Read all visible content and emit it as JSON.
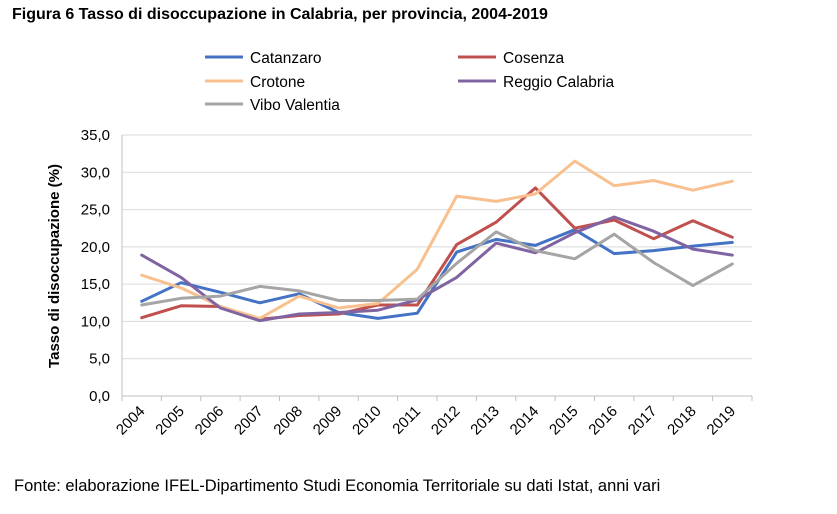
{
  "figure": {
    "title": "Figura 6 Tasso di disoccupazione in Calabria, per provincia, 2004-2019",
    "source": "Fonte: elaborazione IFEL-Dipartimento Studi Economia Territoriale su dati Istat, anni vari"
  },
  "chart_data": {
    "type": "line",
    "title": "Figura 6 Tasso di disoccupazione in Calabria, per provincia, 2004-2019",
    "xlabel": "",
    "ylabel": "Tasso di disoccupazione (%)",
    "x": [
      "2004",
      "2005",
      "2006",
      "2007",
      "2008",
      "2009",
      "2010",
      "2011",
      "2012",
      "2013",
      "2014",
      "2015",
      "2016",
      "2017",
      "2018",
      "2019"
    ],
    "ylim": [
      0,
      35
    ],
    "yticks": [
      "0,0",
      "5,0",
      "10,0",
      "15,0",
      "20,0",
      "25,0",
      "30,0",
      "35,0"
    ],
    "grid": "horizontal",
    "legend_position": "top",
    "series": [
      {
        "name": "Catanzaro",
        "color": "#4472c4",
        "values": [
          12.7,
          15.2,
          13.9,
          12.5,
          13.7,
          11.2,
          10.4,
          11.1,
          19.3,
          21.0,
          20.2,
          22.3,
          19.1,
          19.5,
          20.1,
          20.6
        ]
      },
      {
        "name": "Cosenza",
        "color": "#c0504d",
        "values": [
          10.5,
          12.1,
          12.0,
          10.3,
          10.8,
          11.0,
          12.2,
          12.2,
          20.3,
          23.3,
          27.9,
          22.5,
          23.6,
          21.1,
          23.5,
          21.3
        ]
      },
      {
        "name": "Crotone",
        "color": "#f9c08f",
        "values": [
          16.2,
          14.5,
          12.0,
          10.4,
          13.4,
          11.8,
          12.4,
          17.0,
          26.8,
          26.1,
          27.1,
          31.5,
          28.2,
          28.9,
          27.6,
          28.8
        ]
      },
      {
        "name": "Reggio Calabria",
        "color": "#8064a2",
        "values": [
          18.9,
          15.9,
          11.8,
          10.1,
          11.0,
          11.2,
          11.5,
          12.9,
          15.9,
          20.5,
          19.2,
          21.9,
          24.0,
          22.1,
          19.7,
          18.9
        ]
      },
      {
        "name": "Vibo Valentia",
        "color": "#a5a5a5",
        "values": [
          12.2,
          13.1,
          13.4,
          14.7,
          14.1,
          12.8,
          12.8,
          13.0,
          17.8,
          22.0,
          19.5,
          18.4,
          21.7,
          17.9,
          14.8,
          17.7
        ]
      }
    ]
  }
}
